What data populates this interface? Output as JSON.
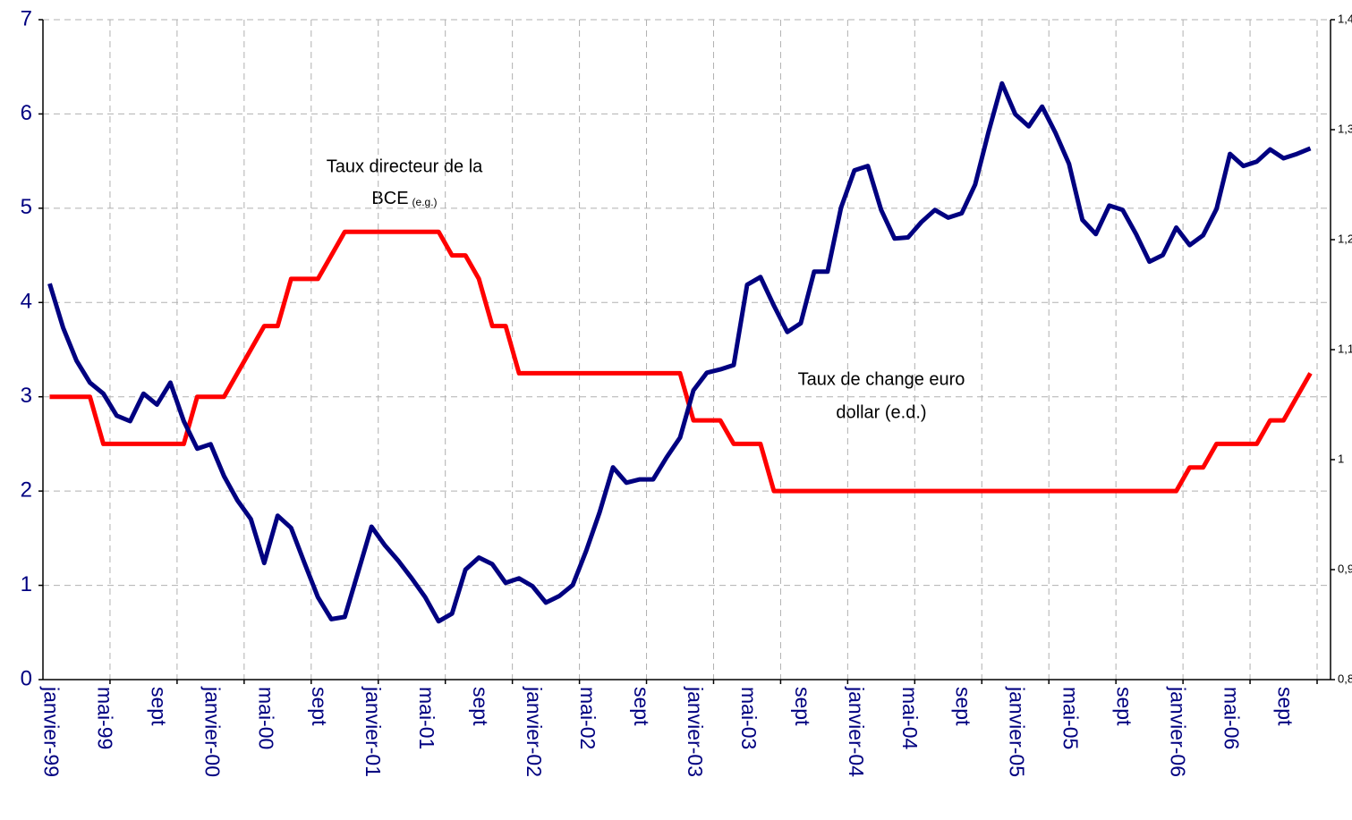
{
  "chart_data": {
    "type": "line",
    "categories": [
      "janvier-99",
      null,
      null,
      null,
      "mai-99",
      null,
      null,
      null,
      "sept",
      null,
      null,
      null,
      "janvier-00",
      null,
      null,
      null,
      "mai-00",
      null,
      null,
      null,
      "sept",
      null,
      null,
      null,
      "janvier-01",
      null,
      null,
      null,
      "mai-01",
      null,
      null,
      null,
      "sept",
      null,
      null,
      null,
      "janvier-02",
      null,
      null,
      null,
      "mai-02",
      null,
      null,
      null,
      "sept",
      null,
      null,
      null,
      "janvier-03",
      null,
      null,
      null,
      "mai-03",
      null,
      null,
      null,
      "sept",
      null,
      null,
      null,
      "janvier-04",
      null,
      null,
      null,
      "mai-04",
      null,
      null,
      null,
      "sept",
      null,
      null,
      null,
      "janvier-05",
      null,
      null,
      null,
      "mai-05",
      null,
      null,
      null,
      "sept",
      null,
      null,
      null,
      "janvier-06",
      null,
      null,
      null,
      "mai-06",
      null,
      null,
      null,
      "sept",
      null,
      null,
      null
    ],
    "series": [
      {
        "color": "#ff0000",
        "values": [
          3,
          3,
          3,
          3,
          2.5,
          2.5,
          2.5,
          2.5,
          2.5,
          2.5,
          2.5,
          3,
          3,
          3,
          3.25,
          3.5,
          3.75,
          3.75,
          4.25,
          4.25,
          4.25,
          4.5,
          4.75,
          4.75,
          4.75,
          4.75,
          4.75,
          4.75,
          4.75,
          4.75,
          4.5,
          4.5,
          4.25,
          3.75,
          3.75,
          3.25,
          3.25,
          3.25,
          3.25,
          3.25,
          3.25,
          3.25,
          3.25,
          3.25,
          3.25,
          3.25,
          3.25,
          3.25,
          2.75,
          2.75,
          2.75,
          2.5,
          2.5,
          2.5,
          2,
          2,
          2,
          2,
          2,
          2,
          2,
          2,
          2,
          2,
          2,
          2,
          2,
          2,
          2,
          2,
          2,
          2,
          2,
          2,
          2,
          2,
          2,
          2,
          2,
          2,
          2,
          2,
          2,
          2,
          2,
          2.25,
          2.25,
          2.5,
          2.5,
          2.5,
          2.5,
          2.75,
          2.75,
          3,
          3.25,
          null
        ]
      },
      {
        "color": "#000080",
        "axis": "y2",
        "values": [
          1.16,
          1.12,
          1.09,
          1.07,
          1.06,
          1.04,
          1.035,
          1.06,
          1.05,
          1.07,
          1.035,
          1.01,
          1.014,
          0.985,
          0.963,
          0.946,
          0.906,
          0.949,
          0.938,
          0.906,
          0.875,
          0.855,
          0.857,
          0.898,
          0.939,
          0.922,
          0.908,
          0.892,
          0.875,
          0.853,
          0.86,
          0.9,
          0.911,
          0.905,
          0.888,
          0.892,
          0.885,
          0.87,
          0.876,
          0.886,
          0.917,
          0.952,
          0.993,
          0.979,
          0.982,
          0.982,
          1.002,
          1.02,
          1.063,
          1.079,
          1.082,
          1.086,
          1.159,
          1.166,
          1.14,
          1.116,
          1.124,
          1.171,
          1.171,
          1.229,
          1.263,
          1.267,
          1.227,
          1.201,
          1.202,
          1.216,
          1.227,
          1.22,
          1.224,
          1.25,
          1.298,
          1.342,
          1.314,
          1.303,
          1.321,
          1.297,
          1.269,
          1.218,
          1.205,
          1.231,
          1.227,
          1.205,
          1.18,
          1.186,
          1.211,
          1.195,
          1.204,
          1.228,
          1.278,
          1.267,
          1.271,
          1.282,
          1.274,
          1.278,
          1.283,
          null
        ]
      }
    ],
    "ylim": [
      0,
      7
    ],
    "yticks": [
      0,
      1,
      2,
      3,
      4,
      5,
      6,
      7
    ],
    "y2lim": [
      0.8,
      1.4
    ],
    "y2ticks": [
      {
        "value": 0.8,
        "label": "0,8"
      },
      {
        "value": 0.9,
        "label": "0,9"
      },
      1,
      {
        "value": 1.1,
        "label": "1,1"
      },
      {
        "value": 1.2,
        "label": "1,2"
      },
      {
        "value": 1.3,
        "label": "1,3"
      },
      {
        "value": 1.4,
        "label": "1,4"
      }
    ],
    "grid": true,
    "annotations": [
      {
        "lines": [
          "Taux directeur de la",
          "BCE"
        ],
        "small": "(e.g.)"
      },
      {
        "lines": [
          "Taux de change euro",
          "dollar (e.d.)"
        ]
      }
    ]
  }
}
